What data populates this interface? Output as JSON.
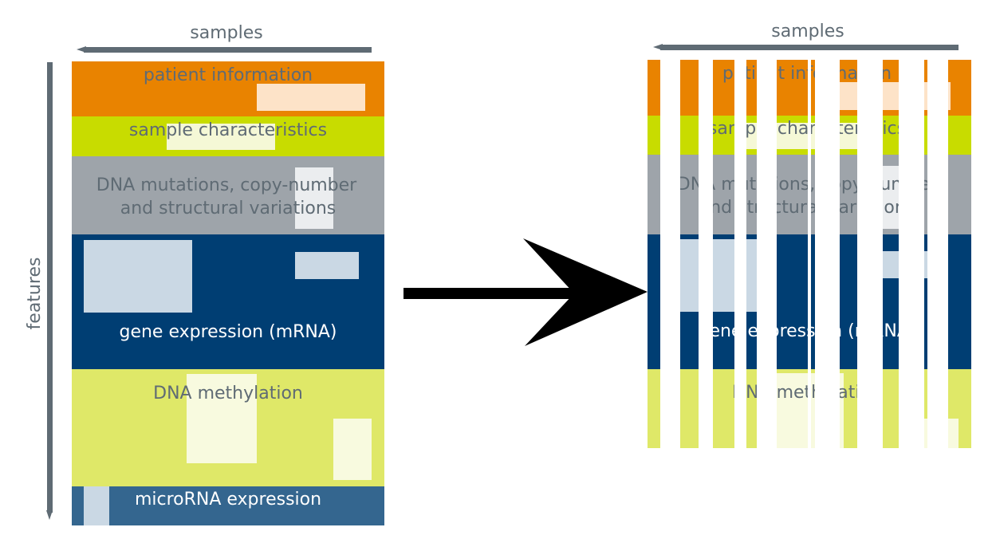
{
  "left_panel": {
    "axis_top_label": "samples",
    "axis_side_label": "features",
    "blocks": [
      {
        "key": "patient",
        "lines": [
          "patient  information"
        ],
        "color": "#E98300"
      },
      {
        "key": "sample",
        "lines": [
          "sample  characteristics"
        ],
        "color": "#C8DC00"
      },
      {
        "key": "dna-mutations",
        "lines": [
          "DNA mutations, copy-number",
          "and  structural variations"
        ],
        "color": "#9EA4AA"
      },
      {
        "key": "gene-expression",
        "lines": [
          "gene  expression  (mRNA)"
        ],
        "color": "#003E73"
      },
      {
        "key": "dna-methylation",
        "lines": [
          "DNA  methylation"
        ],
        "color": "#DFE868"
      },
      {
        "key": "microrna",
        "lines": [
          "microRNA  expression"
        ],
        "color": "#34668F"
      }
    ]
  },
  "right_panel": {
    "axis_top_label": "samples",
    "blocks": [
      {
        "key": "patient",
        "lines": [
          "patient  information"
        ],
        "color": "#E98300"
      },
      {
        "key": "sample",
        "lines": [
          "sample  characteristics"
        ],
        "color": "#C8DC00"
      },
      {
        "key": "dna-mutations",
        "lines": [
          "DNA mutations, copy-number",
          "and  structural variations"
        ],
        "color": "#9EA4AA"
      },
      {
        "key": "gene-expression",
        "lines": [
          "gene  expression  (mRNA)"
        ],
        "color": "#003E73"
      },
      {
        "key": "dna-methylation",
        "lines": [
          "DNA  methylation"
        ],
        "color": "#DFE868"
      }
    ]
  },
  "colors": {
    "axis": "#5F6B74",
    "dark_text": "#5F6B74",
    "light_text": "#FFFFFF",
    "arrow": "#000000"
  }
}
